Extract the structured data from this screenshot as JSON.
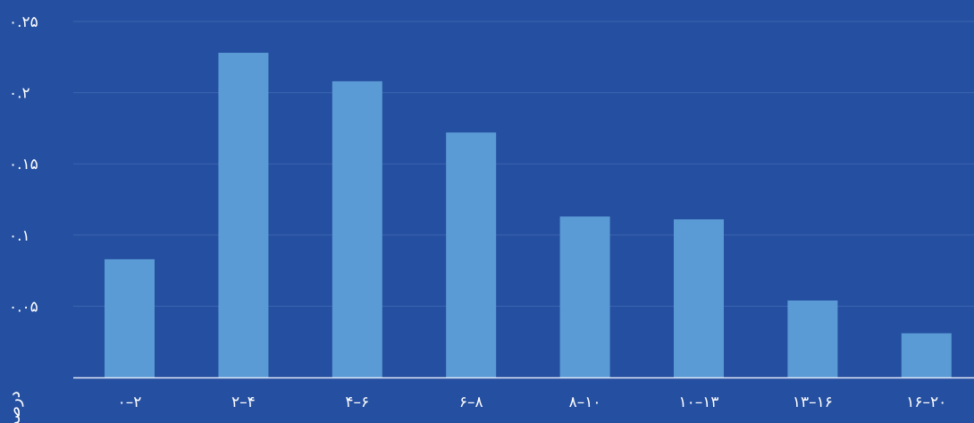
{
  "chart_data": {
    "type": "bar",
    "categories": [
      "۰-۲",
      "۲-۴",
      "۴-۶",
      "۶-۸",
      "۸-۱۰",
      "۱۰-۱۳",
      "۱۳-۱۶",
      "۱۶-۲۰"
    ],
    "category_labels": [
      "۰–۲",
      "۲–۴",
      "۴–۶",
      "۶–۸",
      "۸–۱۰",
      "۱۰–۱۳",
      "۱۳–۱۶",
      "۱۶–۲۰"
    ],
    "values": [
      0.083,
      0.228,
      0.208,
      0.172,
      0.113,
      0.111,
      0.054,
      0.031
    ],
    "ylim": [
      0,
      0.25
    ],
    "yticks": [
      0.05,
      0.1,
      0.15,
      0.2,
      0.25
    ],
    "ytick_labels": [
      "۰.۰۵",
      "۰.۱",
      "۰.۱۵",
      "۰.۲",
      "۰.۲۵"
    ],
    "ylabel": "درصد",
    "xlabel": "",
    "title": "",
    "grid": "horizontal",
    "legend": "none",
    "colors": {
      "background": "#254fa0",
      "bar": "#5b9bd5",
      "grid": "#3b64b0",
      "axis": "#dfe8f7",
      "text": "#ffffff"
    }
  }
}
